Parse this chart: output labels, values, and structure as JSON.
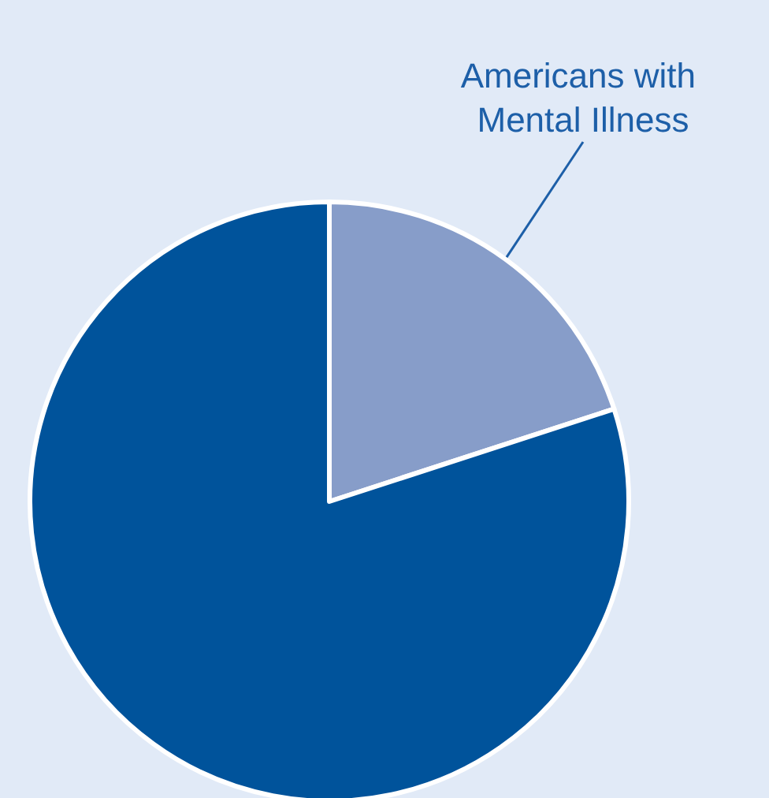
{
  "chart_data": {
    "type": "pie",
    "categories": [
      "Americans with Mental Illness",
      null
    ],
    "values": [
      20,
      80
    ],
    "colors": [
      "#879dc9",
      "#00539b"
    ]
  }
}
